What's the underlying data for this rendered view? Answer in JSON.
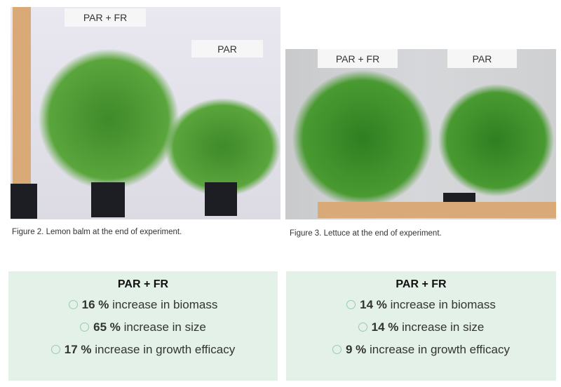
{
  "figures": [
    {
      "labels": [
        "PAR + FR",
        "PAR"
      ],
      "caption": "Figure 2. Lemon balm at the end of experiment."
    },
    {
      "labels": [
        "PAR + FR",
        "PAR"
      ],
      "caption": "Figure 3. Lettuce at the end of experiment."
    }
  ],
  "results": [
    {
      "title": "PAR + FR",
      "items": [
        {
          "value": "16 %",
          "text": " increase in biomass"
        },
        {
          "value": "65 %",
          "text": " increase in size"
        },
        {
          "value": "17 %",
          "text": " increase in growth efficacy"
        }
      ]
    },
    {
      "title": "PAR + FR",
      "items": [
        {
          "value": "14 %",
          "text": " increase in biomass"
        },
        {
          "value": "14 %",
          "text": " increase in size"
        },
        {
          "value": "9 %",
          "text": " increase in growth efficacy"
        }
      ]
    }
  ],
  "colors": {
    "box_bg": "#e3f1e8",
    "icon": "#9cc9ad"
  },
  "icon": "leaf-icon"
}
